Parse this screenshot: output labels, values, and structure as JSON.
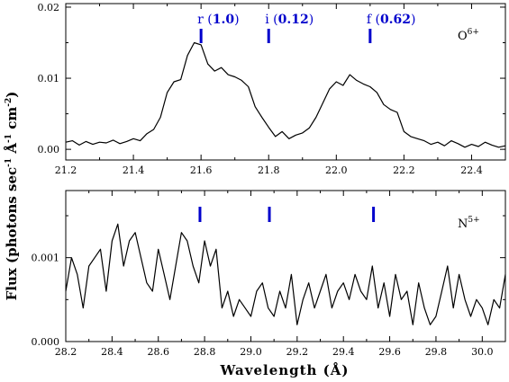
{
  "figure": {
    "ylabel": {
      "main": "Flux (photons sec",
      "sup1": "-1",
      "mid1": " Å",
      "sup2": "-1",
      "mid2": " cm",
      "sup3": "-2",
      "end": ")"
    },
    "xlabel": "Wavelength (Å)",
    "accent_color": "#0000cc"
  },
  "chart_data": [
    {
      "type": "line",
      "ion": {
        "base": "O",
        "sup": "6+"
      },
      "xlim": [
        21.2,
        22.5
      ],
      "ylim": [
        -0.0015,
        0.0205
      ],
      "xticks": [
        "21.2",
        "21.4",
        "21.6",
        "21.8",
        "22.0",
        "22.2",
        "22.4"
      ],
      "xtick_values": [
        21.2,
        21.4,
        21.6,
        21.8,
        22.0,
        22.2,
        22.4
      ],
      "yticks": [
        "0.00",
        "0.01",
        "0.02"
      ],
      "ytick_values": [
        0.0,
        0.01,
        0.02
      ],
      "line_markers": [
        {
          "x": 21.6,
          "letter": "r",
          "value": "1.0"
        },
        {
          "x": 21.8,
          "letter": "i",
          "value": "0.12"
        },
        {
          "x": 22.1,
          "letter": "f",
          "value": "0.62"
        }
      ],
      "series": [
        {
          "x": [
            21.2,
            21.22,
            21.24,
            21.26,
            21.28,
            21.3,
            21.32,
            21.34,
            21.36,
            21.38,
            21.4,
            21.42,
            21.44,
            21.46,
            21.48,
            21.5,
            21.52,
            21.54,
            21.56,
            21.58,
            21.6,
            21.62,
            21.64,
            21.66,
            21.68,
            21.7,
            21.72,
            21.74,
            21.76,
            21.78,
            21.8,
            21.82,
            21.84,
            21.86,
            21.88,
            21.9,
            21.92,
            21.94,
            21.96,
            21.98,
            22.0,
            22.02,
            22.04,
            22.06,
            22.08,
            22.1,
            22.12,
            22.14,
            22.16,
            22.18,
            22.2,
            22.22,
            22.24,
            22.26,
            22.28,
            22.3,
            22.32,
            22.34,
            22.36,
            22.38,
            22.4,
            22.42,
            22.44,
            22.46,
            22.48,
            22.5
          ],
          "y": [
            0.001,
            0.0012,
            0.0006,
            0.0011,
            0.0007,
            0.001,
            0.0009,
            0.0013,
            0.0008,
            0.0011,
            0.0015,
            0.0012,
            0.0022,
            0.0028,
            0.0045,
            0.008,
            0.0095,
            0.0098,
            0.0132,
            0.015,
            0.0147,
            0.012,
            0.011,
            0.0115,
            0.0105,
            0.0102,
            0.0097,
            0.0088,
            0.006,
            0.0045,
            0.0031,
            0.0018,
            0.0025,
            0.0015,
            0.002,
            0.0023,
            0.003,
            0.0045,
            0.0065,
            0.0085,
            0.0095,
            0.009,
            0.0105,
            0.0097,
            0.0092,
            0.0088,
            0.008,
            0.0063,
            0.0056,
            0.0052,
            0.0025,
            0.0018,
            0.0015,
            0.0012,
            0.0007,
            0.001,
            0.0005,
            0.0012,
            0.0008,
            0.0003,
            0.0007,
            0.0004,
            0.001,
            0.0006,
            0.0003,
            0.0005
          ]
        }
      ]
    },
    {
      "type": "line",
      "ion": {
        "base": "N",
        "sup": "5+"
      },
      "xlim": [
        28.2,
        30.1
      ],
      "ylim": [
        0.0,
        0.0018
      ],
      "xticks": [
        "28.2",
        "28.4",
        "28.6",
        "28.8",
        "29.0",
        "29.2",
        "29.4",
        "29.6",
        "29.8",
        "30.0"
      ],
      "xtick_values": [
        28.2,
        28.4,
        28.6,
        28.8,
        29.0,
        29.2,
        29.4,
        29.6,
        29.8,
        30.0
      ],
      "yticks": [
        "0.000",
        "0.001"
      ],
      "ytick_values": [
        0.0,
        0.001
      ],
      "line_markers": [
        {
          "x": 28.78,
          "letter": "",
          "value": ""
        },
        {
          "x": 29.08,
          "letter": "",
          "value": ""
        },
        {
          "x": 29.53,
          "letter": "",
          "value": ""
        }
      ],
      "series": [
        {
          "x": [
            28.2,
            28.225,
            28.25,
            28.275,
            28.3,
            28.325,
            28.35,
            28.375,
            28.4,
            28.425,
            28.45,
            28.475,
            28.5,
            28.525,
            28.55,
            28.575,
            28.6,
            28.625,
            28.65,
            28.675,
            28.7,
            28.725,
            28.75,
            28.775,
            28.8,
            28.825,
            28.85,
            28.875,
            28.9,
            28.925,
            28.95,
            28.975,
            29.0,
            29.025,
            29.05,
            29.075,
            29.1,
            29.125,
            29.15,
            29.175,
            29.2,
            29.225,
            29.25,
            29.275,
            29.3,
            29.325,
            29.35,
            29.375,
            29.4,
            29.425,
            29.45,
            29.475,
            29.5,
            29.525,
            29.55,
            29.575,
            29.6,
            29.625,
            29.65,
            29.675,
            29.7,
            29.725,
            29.75,
            29.775,
            29.8,
            29.825,
            29.85,
            29.875,
            29.9,
            29.925,
            29.95,
            29.975,
            30.0,
            30.025,
            30.05,
            30.075,
            30.1
          ],
          "y": [
            0.0006,
            0.001,
            0.0008,
            0.0004,
            0.0009,
            0.001,
            0.0011,
            0.0006,
            0.0012,
            0.0014,
            0.0009,
            0.0012,
            0.0013,
            0.001,
            0.0007,
            0.0006,
            0.0011,
            0.0008,
            0.0005,
            0.0009,
            0.0013,
            0.0012,
            0.0009,
            0.0007,
            0.0012,
            0.0009,
            0.0011,
            0.0004,
            0.0006,
            0.0003,
            0.0005,
            0.0004,
            0.0003,
            0.0006,
            0.0007,
            0.0004,
            0.0003,
            0.0006,
            0.0004,
            0.0008,
            0.0002,
            0.0005,
            0.0007,
            0.0004,
            0.0006,
            0.0008,
            0.0004,
            0.0006,
            0.0007,
            0.0005,
            0.0008,
            0.0006,
            0.0005,
            0.0009,
            0.0004,
            0.0007,
            0.0003,
            0.0008,
            0.0005,
            0.0006,
            0.0002,
            0.0007,
            0.0004,
            0.0002,
            0.0003,
            0.0006,
            0.0009,
            0.0004,
            0.0008,
            0.0005,
            0.0003,
            0.0005,
            0.0004,
            0.0002,
            0.0005,
            0.0004,
            0.0008
          ]
        }
      ]
    }
  ]
}
